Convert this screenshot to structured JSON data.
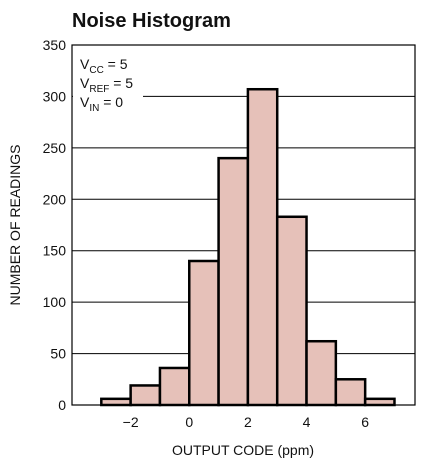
{
  "chart_data": {
    "type": "histogram",
    "title": "Noise Histogram",
    "x_label": "OUTPUT CODE (ppm)",
    "y_label": "NUMBER OF READINGS",
    "bins": [
      -3,
      -2,
      -1,
      0,
      1,
      2,
      3,
      4,
      5,
      6,
      7
    ],
    "values": [
      6,
      19,
      36,
      140,
      240,
      307,
      183,
      62,
      25,
      6
    ],
    "color": "#e6c1b9",
    "edge_color": "#000000",
    "xlim": [
      -4,
      7.7
    ],
    "xticks": [
      {
        "value": -2,
        "label": "−2"
      },
      0,
      2,
      4,
      6
    ],
    "ylim": [
      0,
      350
    ],
    "yticks": [
      0,
      50,
      100,
      150,
      200,
      250,
      300,
      350
    ],
    "grid": true,
    "annotations": [
      {
        "base": "V",
        "sub": "CC",
        "rest": " = 5"
      },
      {
        "base": "V",
        "sub": "REF",
        "rest": " = 5"
      },
      {
        "base": "V",
        "sub": "IN",
        "rest": " = 0"
      }
    ]
  }
}
